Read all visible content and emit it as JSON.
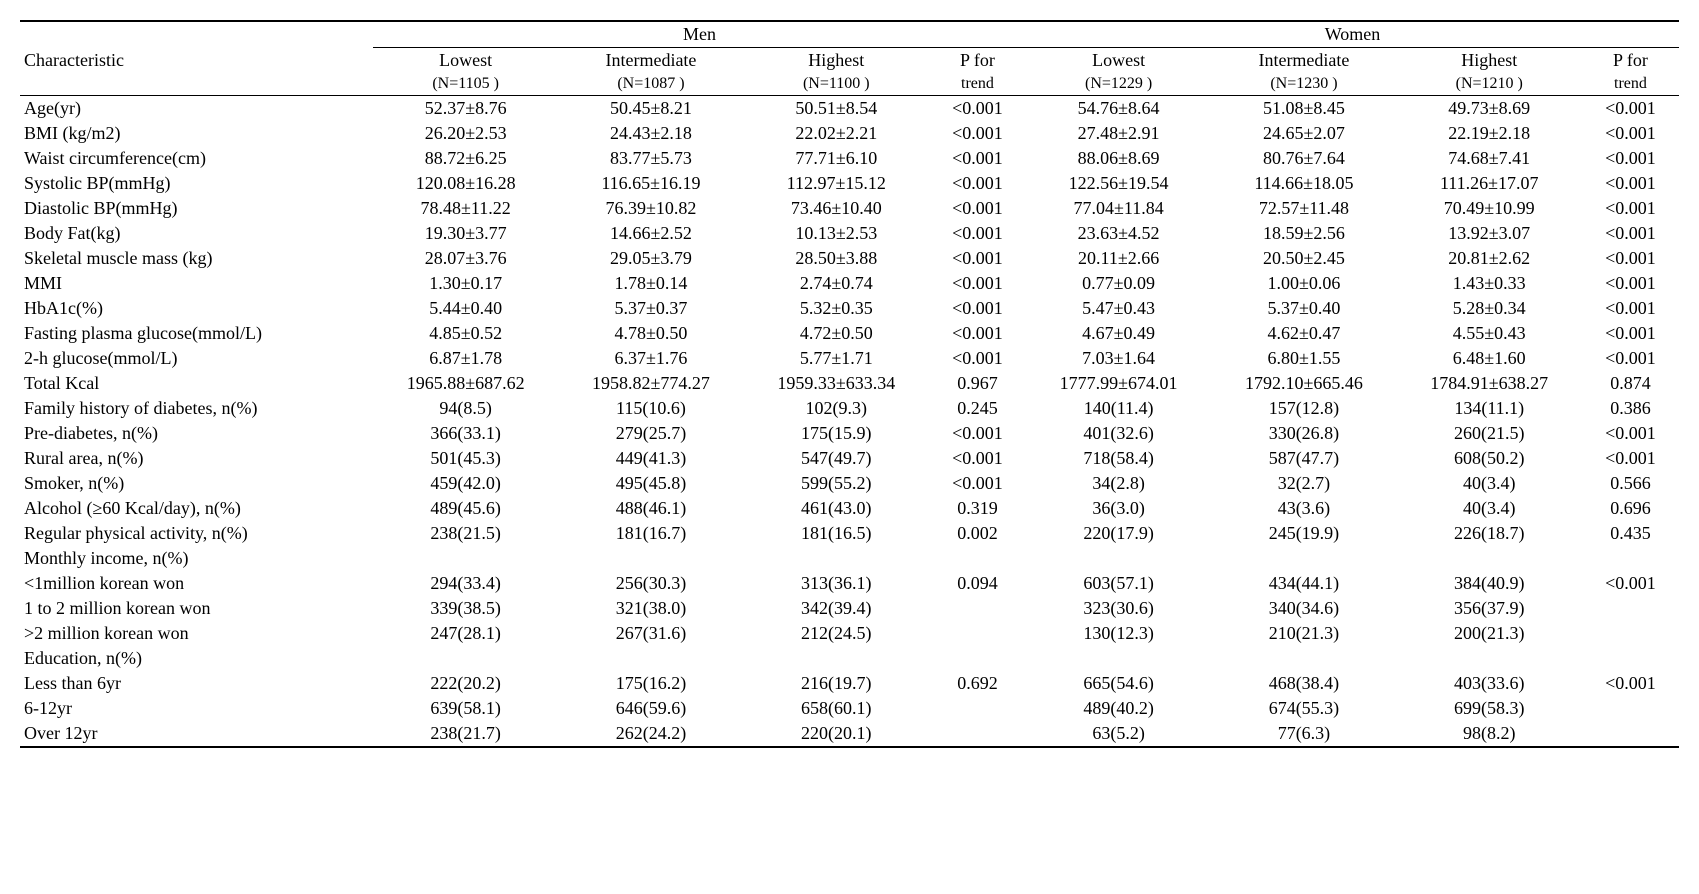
{
  "header": {
    "characteristic": "Characteristic",
    "men": "Men",
    "women": "Women",
    "lowest": "Lowest",
    "intermediate": "Intermediate",
    "highest": "Highest",
    "pfor": "P for",
    "trend": "trend",
    "n_men_lowest": "(N=1105 )",
    "n_men_intermediate": "(N=1087 )",
    "n_men_highest": "(N=1100 )",
    "n_women_lowest": "(N=1229 )",
    "n_women_intermediate": "(N=1230 )",
    "n_women_highest": "(N=1210 )"
  },
  "rows": [
    {
      "label": "Age(yr)",
      "m": [
        "52.37±8.76",
        "50.45±8.21",
        "50.51±8.54",
        "<0.001"
      ],
      "w": [
        "54.76±8.64",
        "51.08±8.45",
        "49.73±8.69",
        "<0.001"
      ]
    },
    {
      "label": "BMI (kg/m2)",
      "m": [
        "26.20±2.53",
        "24.43±2.18",
        "22.02±2.21",
        "<0.001"
      ],
      "w": [
        "27.48±2.91",
        "24.65±2.07",
        "22.19±2.18",
        "<0.001"
      ]
    },
    {
      "label": "Waist circumference(cm)",
      "m": [
        "88.72±6.25",
        "83.77±5.73",
        "77.71±6.10",
        "<0.001"
      ],
      "w": [
        "88.06±8.69",
        "80.76±7.64",
        "74.68±7.41",
        "<0.001"
      ]
    },
    {
      "label": "Systolic BP(mmHg)",
      "m": [
        "120.08±16.28",
        "116.65±16.19",
        "112.97±15.12",
        "<0.001"
      ],
      "w": [
        "122.56±19.54",
        "114.66±18.05",
        "111.26±17.07",
        "<0.001"
      ]
    },
    {
      "label": "Diastolic BP(mmHg)",
      "m": [
        "78.48±11.22",
        "76.39±10.82",
        "73.46±10.40",
        "<0.001"
      ],
      "w": [
        "77.04±11.84",
        "72.57±11.48",
        "70.49±10.99",
        "<0.001"
      ]
    },
    {
      "label": "Body Fat(kg)",
      "m": [
        "19.30±3.77",
        "14.66±2.52",
        "10.13±2.53",
        "<0.001"
      ],
      "w": [
        "23.63±4.52",
        "18.59±2.56",
        "13.92±3.07",
        "<0.001"
      ]
    },
    {
      "label": "Skeletal muscle mass (kg)",
      "m": [
        "28.07±3.76",
        "29.05±3.79",
        "28.50±3.88",
        "<0.001"
      ],
      "w": [
        "20.11±2.66",
        "20.50±2.45",
        "20.81±2.62",
        "<0.001"
      ]
    },
    {
      "label": "MMI",
      "m": [
        "1.30±0.17",
        "1.78±0.14",
        "2.74±0.74",
        "<0.001"
      ],
      "w": [
        "0.77±0.09",
        "1.00±0.06",
        "1.43±0.33",
        "<0.001"
      ]
    },
    {
      "label": "HbA1c(%)",
      "m": [
        "5.44±0.40",
        "5.37±0.37",
        "5.32±0.35",
        "<0.001"
      ],
      "w": [
        "5.47±0.43",
        "5.37±0.40",
        "5.28±0.34",
        "<0.001"
      ]
    },
    {
      "label": "Fasting plasma glucose(mmol/L)",
      "m": [
        "4.85±0.52",
        "4.78±0.50",
        "4.72±0.50",
        "<0.001"
      ],
      "w": [
        "4.67±0.49",
        "4.62±0.47",
        "4.55±0.43",
        "<0.001"
      ]
    },
    {
      "label": "2-h glucose(mmol/L)",
      "m": [
        "6.87±1.78",
        "6.37±1.76",
        "5.77±1.71",
        "<0.001"
      ],
      "w": [
        "7.03±1.64",
        "6.80±1.55",
        "6.48±1.60",
        "<0.001"
      ]
    },
    {
      "label": "Total Kcal",
      "m": [
        "1965.88±687.62",
        "1958.82±774.27",
        "1959.33±633.34",
        "0.967"
      ],
      "w": [
        "1777.99±674.01",
        "1792.10±665.46",
        "1784.91±638.27",
        "0.874"
      ]
    },
    {
      "label": "Family history of diabetes, n(%)",
      "m": [
        "94(8.5)",
        "115(10.6)",
        "102(9.3)",
        "0.245"
      ],
      "w": [
        "140(11.4)",
        "157(12.8)",
        "134(11.1)",
        "0.386"
      ]
    },
    {
      "label": "Pre-diabetes, n(%)",
      "m": [
        "366(33.1)",
        "279(25.7)",
        "175(15.9)",
        "<0.001"
      ],
      "w": [
        "401(32.6)",
        "330(26.8)",
        "260(21.5)",
        "<0.001"
      ]
    },
    {
      "label": "Rural area, n(%)",
      "m": [
        "501(45.3)",
        "449(41.3)",
        "547(49.7)",
        "<0.001"
      ],
      "w": [
        "718(58.4)",
        "587(47.7)",
        "608(50.2)",
        "<0.001"
      ]
    },
    {
      "label": "Smoker, n(%)",
      "m": [
        "459(42.0)",
        "495(45.8)",
        "599(55.2)",
        "<0.001"
      ],
      "w": [
        "34(2.8)",
        "32(2.7)",
        "40(3.4)",
        "0.566"
      ]
    },
    {
      "label": "Alcohol (≥60 Kcal/day), n(%)",
      "m": [
        "489(45.6)",
        "488(46.1)",
        "461(43.0)",
        "0.319"
      ],
      "w": [
        "36(3.0)",
        "43(3.6)",
        "40(3.4)",
        "0.696"
      ]
    },
    {
      "label": "Regular physical activity, n(%)",
      "m": [
        "238(21.5)",
        "181(16.7)",
        "181(16.5)",
        "0.002"
      ],
      "w": [
        "220(17.9)",
        "245(19.9)",
        "226(18.7)",
        "0.435"
      ]
    },
    {
      "label": "Monthly income, n(%)",
      "m": [
        "",
        "",
        "",
        ""
      ],
      "w": [
        "",
        "",
        "",
        ""
      ]
    },
    {
      "label": "<1million korean won",
      "m": [
        "294(33.4)",
        "256(30.3)",
        "313(36.1)",
        "0.094"
      ],
      "w": [
        "603(57.1)",
        "434(44.1)",
        "384(40.9)",
        "<0.001"
      ]
    },
    {
      "label": "1 to 2 million korean won",
      "m": [
        "339(38.5)",
        "321(38.0)",
        "342(39.4)",
        ""
      ],
      "w": [
        "323(30.6)",
        "340(34.6)",
        "356(37.9)",
        ""
      ]
    },
    {
      "label": ">2 million korean won",
      "m": [
        "247(28.1)",
        "267(31.6)",
        "212(24.5)",
        ""
      ],
      "w": [
        "130(12.3)",
        "210(21.3)",
        "200(21.3)",
        ""
      ]
    },
    {
      "label": "Education, n(%)",
      "m": [
        "",
        "",
        "",
        ""
      ],
      "w": [
        "",
        "",
        "",
        ""
      ]
    },
    {
      "label": "Less than 6yr",
      "m": [
        "222(20.2)",
        "175(16.2)",
        "216(19.7)",
        "0.692"
      ],
      "w": [
        "665(54.6)",
        "468(38.4)",
        "403(33.6)",
        "<0.001"
      ]
    },
    {
      "label": "6-12yr",
      "m": [
        "639(58.1)",
        "646(59.6)",
        "658(60.1)",
        ""
      ],
      "w": [
        "489(40.2)",
        "674(55.3)",
        "699(58.3)",
        ""
      ]
    },
    {
      "label": "Over 12yr",
      "m": [
        "238(21.7)",
        "262(24.2)",
        "220(20.1)",
        ""
      ],
      "w": [
        "63(5.2)",
        "77(6.3)",
        "98(8.2)",
        ""
      ]
    }
  ]
}
